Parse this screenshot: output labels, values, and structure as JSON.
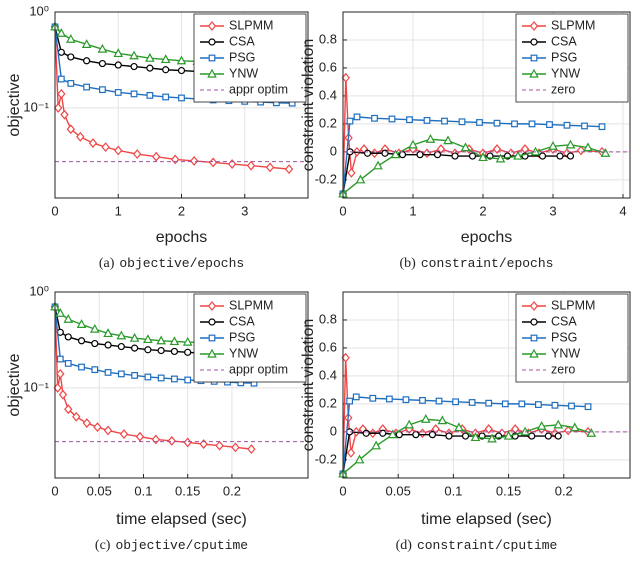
{
  "chart_data": [
    {
      "type": "line",
      "caption_tag": "(a)",
      "caption": "objective/epochs",
      "xlabel": "epochs",
      "ylabel": "objective",
      "log_scale": true,
      "grid": true,
      "legend": "upper right",
      "xlim": [
        0,
        4
      ],
      "xticks": [
        0,
        1,
        2,
        3
      ],
      "ylim": [
        0.0115,
        1
      ],
      "yticks": [
        {
          "value": 1,
          "label": "10⁰"
        },
        {
          "value": 0.1,
          "label": "10⁻¹"
        }
      ],
      "series": [
        {
          "name": "SLPMM",
          "color": "#f04545",
          "marker": "diamond",
          "x": [
            0,
            0.05,
            0.1,
            0.15,
            0.25,
            0.4,
            0.6,
            0.8,
            1.0,
            1.3,
            1.6,
            1.9,
            2.2,
            2.5,
            2.8,
            3.1,
            3.4,
            3.7
          ],
          "values": [
            0.7,
            0.1,
            0.14,
            0.085,
            0.06,
            0.05,
            0.043,
            0.039,
            0.036,
            0.033,
            0.031,
            0.029,
            0.028,
            0.027,
            0.026,
            0.025,
            0.024,
            0.023
          ]
        },
        {
          "name": "CSA",
          "color": "#000000",
          "marker": "circle",
          "x": [
            0,
            0.1,
            0.25,
            0.5,
            0.75,
            1,
            1.25,
            1.5,
            1.75,
            2,
            2.25,
            2.5,
            2.75,
            3,
            3.25,
            3.5,
            3.75
          ],
          "values": [
            0.7,
            0.38,
            0.34,
            0.31,
            0.29,
            0.28,
            0.27,
            0.26,
            0.25,
            0.245,
            0.24,
            0.235,
            0.23,
            0.225,
            0.22,
            0.215,
            0.21
          ]
        },
        {
          "name": "PSG",
          "color": "#1f6fc0",
          "marker": "square",
          "x": [
            0,
            0.1,
            0.25,
            0.5,
            0.75,
            1,
            1.25,
            1.5,
            1.75,
            2,
            2.25,
            2.5,
            2.75,
            3,
            3.25,
            3.5,
            3.75
          ],
          "values": [
            0.7,
            0.2,
            0.18,
            0.165,
            0.155,
            0.145,
            0.14,
            0.135,
            0.13,
            0.127,
            0.124,
            0.121,
            0.119,
            0.117,
            0.115,
            0.113,
            0.112
          ]
        },
        {
          "name": "YNW",
          "color": "#2a9a2a",
          "marker": "triangle",
          "x": [
            0,
            0.1,
            0.25,
            0.5,
            0.75,
            1,
            1.25,
            1.5,
            1.75,
            2,
            2.25,
            2.5,
            2.75,
            3,
            3.25,
            3.5,
            3.75
          ],
          "values": [
            0.7,
            0.6,
            0.52,
            0.46,
            0.41,
            0.37,
            0.35,
            0.33,
            0.32,
            0.31,
            0.305,
            0.3,
            0.3,
            0.3,
            0.3,
            0.3,
            0.3
          ]
        },
        {
          "name": "appr optim",
          "color": "#a050a0",
          "dashed": true,
          "x": [
            0,
            4
          ],
          "values": [
            0.0275,
            0.0275
          ]
        }
      ]
    },
    {
      "type": "line",
      "caption_tag": "(b)",
      "caption": "constraint/epochs",
      "xlabel": "epochs",
      "ylabel": "constraint violation",
      "log_scale": false,
      "grid": true,
      "legend": "upper right",
      "xlim": [
        0,
        4.1
      ],
      "xticks": [
        0,
        1,
        2,
        3,
        4
      ],
      "ylim": [
        -0.33,
        1.0
      ],
      "yticks": [
        -0.2,
        0,
        0.2,
        0.4,
        0.6,
        0.8
      ],
      "series": [
        {
          "name": "SLPMM",
          "color": "#f04545",
          "marker": "diamond",
          "x": [
            0,
            0.04,
            0.08,
            0.12,
            0.2,
            0.3,
            0.45,
            0.6,
            0.8,
            1.0,
            1.2,
            1.4,
            1.6,
            1.8,
            2.0,
            2.2,
            2.4,
            2.6,
            2.8,
            3.0,
            3.2,
            3.4,
            3.7
          ],
          "values": [
            -0.3,
            0.53,
            0.1,
            -0.15,
            0.0,
            0.02,
            -0.01,
            0.02,
            -0.01,
            0.02,
            -0.01,
            0.02,
            -0.01,
            0.02,
            -0.01,
            0.02,
            -0.01,
            0.02,
            -0.01,
            0.02,
            -0.01,
            0.01,
            0.0
          ]
        },
        {
          "name": "CSA",
          "color": "#000000",
          "marker": "circle",
          "x": [
            0,
            0.1,
            0.35,
            0.6,
            0.85,
            1.1,
            1.35,
            1.6,
            1.85,
            2.1,
            2.35,
            2.6,
            2.85,
            3.1,
            3.25
          ],
          "values": [
            -0.3,
            0.0,
            -0.01,
            -0.01,
            -0.02,
            -0.02,
            -0.02,
            -0.03,
            -0.03,
            -0.03,
            -0.03,
            -0.03,
            -0.03,
            -0.03,
            -0.03
          ]
        },
        {
          "name": "PSG",
          "color": "#1f6fc0",
          "marker": "square",
          "x": [
            0,
            0.1,
            0.2,
            0.45,
            0.7,
            0.95,
            1.2,
            1.45,
            1.7,
            1.95,
            2.2,
            2.45,
            2.7,
            2.95,
            3.2,
            3.45,
            3.7
          ],
          "values": [
            -0.3,
            0.22,
            0.25,
            0.24,
            0.235,
            0.23,
            0.225,
            0.22,
            0.215,
            0.21,
            0.205,
            0.2,
            0.2,
            0.195,
            0.19,
            0.185,
            0.18
          ]
        },
        {
          "name": "YNW",
          "color": "#2a9a2a",
          "marker": "triangle",
          "x": [
            0,
            0.25,
            0.5,
            0.75,
            1.0,
            1.25,
            1.5,
            1.75,
            2.0,
            2.25,
            2.5,
            2.75,
            3.0,
            3.25,
            3.5,
            3.75
          ],
          "values": [
            -0.3,
            -0.2,
            -0.1,
            -0.02,
            0.05,
            0.09,
            0.08,
            0.03,
            -0.04,
            -0.05,
            -0.03,
            0.0,
            0.04,
            0.05,
            0.03,
            -0.01
          ]
        },
        {
          "name": "zero",
          "color": "#a050a0",
          "dashed": true,
          "x": [
            0,
            4.1
          ],
          "values": [
            0,
            0
          ]
        }
      ]
    },
    {
      "type": "line",
      "caption_tag": "(c)",
      "caption": "objective/cputime",
      "xlabel": "time elapsed (sec)",
      "ylabel": "objective",
      "log_scale": true,
      "grid": true,
      "legend": "upper right",
      "xlim": [
        0,
        0.286
      ],
      "xticks": [
        0,
        0.05,
        0.1,
        0.15,
        0.2
      ],
      "ylim": [
        0.0115,
        1
      ],
      "yticks": [
        {
          "value": 1,
          "label": "10⁰"
        },
        {
          "value": 0.1,
          "label": "10⁻¹"
        }
      ],
      "series": [
        {
          "name": "SLPMM",
          "color": "#f04545",
          "marker": "diamond",
          "x": [
            0,
            0.003,
            0.006,
            0.009,
            0.015,
            0.024,
            0.036,
            0.048,
            0.06,
            0.078,
            0.096,
            0.114,
            0.132,
            0.15,
            0.168,
            0.186,
            0.204,
            0.222
          ],
          "values": [
            0.7,
            0.1,
            0.14,
            0.085,
            0.06,
            0.05,
            0.043,
            0.039,
            0.036,
            0.033,
            0.031,
            0.029,
            0.028,
            0.027,
            0.026,
            0.025,
            0.024,
            0.023
          ]
        },
        {
          "name": "CSA",
          "color": "#000000",
          "marker": "circle",
          "x": [
            0,
            0.006,
            0.015,
            0.03,
            0.045,
            0.06,
            0.075,
            0.09,
            0.105,
            0.12,
            0.135,
            0.15,
            0.165,
            0.18,
            0.195,
            0.21,
            0.225
          ],
          "values": [
            0.7,
            0.38,
            0.34,
            0.31,
            0.29,
            0.28,
            0.27,
            0.26,
            0.25,
            0.245,
            0.24,
            0.235,
            0.23,
            0.225,
            0.22,
            0.215,
            0.21
          ]
        },
        {
          "name": "PSG",
          "color": "#1f6fc0",
          "marker": "square",
          "x": [
            0,
            0.006,
            0.015,
            0.03,
            0.045,
            0.06,
            0.075,
            0.09,
            0.105,
            0.12,
            0.135,
            0.15,
            0.165,
            0.18,
            0.195,
            0.21,
            0.225
          ],
          "values": [
            0.7,
            0.2,
            0.18,
            0.165,
            0.155,
            0.145,
            0.14,
            0.135,
            0.13,
            0.127,
            0.124,
            0.121,
            0.119,
            0.117,
            0.115,
            0.113,
            0.112
          ]
        },
        {
          "name": "YNW",
          "color": "#2a9a2a",
          "marker": "triangle",
          "x": [
            0,
            0.006,
            0.015,
            0.03,
            0.045,
            0.06,
            0.075,
            0.09,
            0.105,
            0.12,
            0.135,
            0.15,
            0.165,
            0.18,
            0.195,
            0.21,
            0.225
          ],
          "values": [
            0.7,
            0.6,
            0.52,
            0.46,
            0.41,
            0.37,
            0.35,
            0.33,
            0.32,
            0.31,
            0.305,
            0.3,
            0.3,
            0.3,
            0.3,
            0.3,
            0.3
          ]
        },
        {
          "name": "appr optim",
          "color": "#a050a0",
          "dashed": true,
          "x": [
            0,
            0.286
          ],
          "values": [
            0.0275,
            0.0275
          ]
        }
      ]
    },
    {
      "type": "line",
      "caption_tag": "(d)",
      "caption": "constraint/cputime",
      "xlabel": "time elapsed (sec)",
      "ylabel": "constraint violation",
      "log_scale": false,
      "grid": true,
      "legend": "upper right",
      "xlim": [
        0,
        0.26
      ],
      "xticks": [
        0,
        0.05,
        0.1,
        0.15,
        0.2
      ],
      "ylim": [
        -0.33,
        1.0
      ],
      "yticks": [
        -0.2,
        0,
        0.2,
        0.4,
        0.6,
        0.8
      ],
      "series": [
        {
          "name": "SLPMM",
          "color": "#f04545",
          "marker": "diamond",
          "x": [
            0,
            0.0024,
            0.0048,
            0.0072,
            0.012,
            0.018,
            0.027,
            0.036,
            0.048,
            0.06,
            0.072,
            0.084,
            0.096,
            0.108,
            0.12,
            0.132,
            0.144,
            0.156,
            0.168,
            0.18,
            0.192,
            0.204,
            0.222
          ],
          "values": [
            -0.3,
            0.53,
            0.1,
            -0.15,
            0.0,
            0.02,
            -0.01,
            0.02,
            -0.01,
            0.02,
            -0.01,
            0.02,
            -0.01,
            0.02,
            -0.01,
            0.02,
            -0.01,
            0.02,
            -0.01,
            0.02,
            -0.01,
            0.01,
            0.0
          ]
        },
        {
          "name": "CSA",
          "color": "#000000",
          "marker": "circle",
          "x": [
            0,
            0.006,
            0.021,
            0.036,
            0.051,
            0.066,
            0.081,
            0.096,
            0.111,
            0.126,
            0.141,
            0.156,
            0.171,
            0.186,
            0.195
          ],
          "values": [
            -0.3,
            0.0,
            -0.01,
            -0.01,
            -0.02,
            -0.02,
            -0.02,
            -0.03,
            -0.03,
            -0.03,
            -0.03,
            -0.03,
            -0.03,
            -0.03,
            -0.03
          ]
        },
        {
          "name": "PSG",
          "color": "#1f6fc0",
          "marker": "square",
          "x": [
            0,
            0.006,
            0.012,
            0.027,
            0.042,
            0.057,
            0.072,
            0.087,
            0.102,
            0.117,
            0.132,
            0.147,
            0.162,
            0.177,
            0.192,
            0.207,
            0.222
          ],
          "values": [
            -0.3,
            0.22,
            0.25,
            0.24,
            0.235,
            0.23,
            0.225,
            0.22,
            0.215,
            0.21,
            0.205,
            0.2,
            0.2,
            0.195,
            0.19,
            0.185,
            0.18
          ]
        },
        {
          "name": "YNW",
          "color": "#2a9a2a",
          "marker": "triangle",
          "x": [
            0,
            0.015,
            0.03,
            0.045,
            0.06,
            0.075,
            0.09,
            0.105,
            0.12,
            0.135,
            0.15,
            0.165,
            0.18,
            0.195,
            0.21,
            0.225
          ],
          "values": [
            -0.3,
            -0.2,
            -0.1,
            -0.02,
            0.05,
            0.09,
            0.08,
            0.03,
            -0.04,
            -0.05,
            -0.03,
            0.0,
            0.04,
            0.05,
            0.03,
            -0.01
          ]
        },
        {
          "name": "zero",
          "color": "#a050a0",
          "dashed": true,
          "x": [
            0,
            0.26
          ],
          "values": [
            0,
            0
          ]
        }
      ]
    }
  ]
}
